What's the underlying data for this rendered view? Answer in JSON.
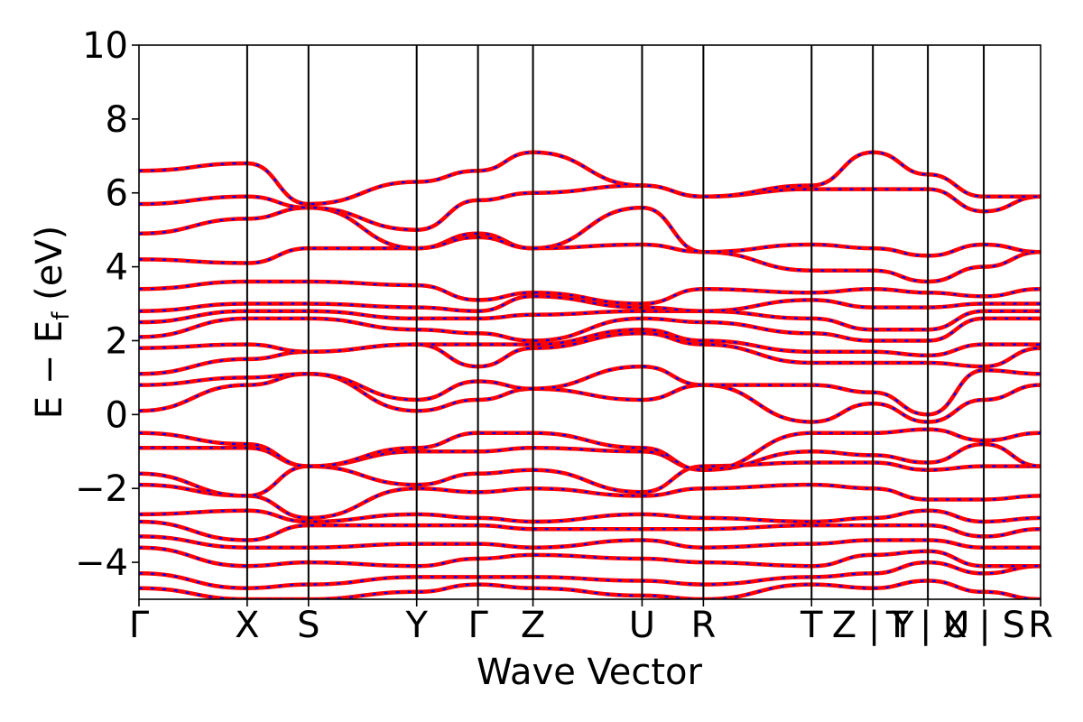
{
  "chart_data": {
    "type": "line",
    "xlabel": "Wave Vector",
    "ylabel": "E − E",
    "ylabel_subscript": "f",
    "ylabel_unit": " (eV)",
    "ylim": [
      -5,
      10
    ],
    "yticks": [
      -4,
      -2,
      0,
      2,
      4,
      6,
      8,
      10
    ],
    "ytick_labels": [
      "−4",
      "−2",
      "0",
      "2",
      "4",
      "6",
      "8",
      "10"
    ],
    "xlim": [
      0,
      1
    ],
    "kpath_ticks": [
      {
        "x": 0.0,
        "label": "Γ"
      },
      {
        "x": 0.12,
        "label": "X"
      },
      {
        "x": 0.188,
        "label": "S"
      },
      {
        "x": 0.308,
        "label": "Y"
      },
      {
        "x": 0.376,
        "label": "Γ"
      },
      {
        "x": 0.437,
        "label": "Z"
      },
      {
        "x": 0.558,
        "label": "U"
      },
      {
        "x": 0.626,
        "label": "R"
      },
      {
        "x": 0.746,
        "label": "T"
      },
      {
        "x": 0.814,
        "label": "Z | Y"
      },
      {
        "x": 0.875,
        "label": "T | U"
      },
      {
        "x": 0.937,
        "label": "X | S"
      },
      {
        "x": 1.0,
        "label": "R"
      }
    ],
    "segment_boundaries": [
      0.0,
      0.12,
      0.188,
      0.308,
      0.376,
      0.437,
      0.558,
      0.626,
      0.746,
      0.814,
      0.875,
      0.937,
      1.0
    ],
    "colors": {
      "band_solid": "#ff0000",
      "band_dashed": "#0000ff",
      "vline": "#000000"
    },
    "series": [
      {
        "values_at_ticks": [
          -4.7,
          -5.0,
          -5.0,
          -4.8,
          -4.6,
          -4.7,
          -4.9,
          -5.0,
          -4.6,
          -4.7,
          -4.5,
          -4.8,
          -5.0
        ]
      },
      {
        "values_at_ticks": [
          -4.3,
          -4.7,
          -4.6,
          -4.4,
          -4.4,
          -4.4,
          -4.5,
          -4.6,
          -4.4,
          -4.3,
          -4.0,
          -4.3,
          -4.1
        ]
      },
      {
        "values_at_ticks": [
          -3.6,
          -4.1,
          -4.0,
          -4.1,
          -3.9,
          -3.8,
          -3.9,
          -4.0,
          -4.1,
          -3.8,
          -3.7,
          -4.1,
          -4.1
        ]
      },
      {
        "values_at_ticks": [
          -3.3,
          -3.6,
          -3.6,
          -3.5,
          -3.5,
          -3.6,
          -3.4,
          -3.6,
          -3.5,
          -3.4,
          -3.4,
          -3.6,
          -3.6
        ]
      },
      {
        "values_at_ticks": [
          -2.9,
          -3.4,
          -3.0,
          -3.0,
          -3.0,
          -3.1,
          -3.1,
          -3.1,
          -3.0,
          -3.0,
          -3.0,
          -3.3,
          -3.1
        ]
      },
      {
        "values_at_ticks": [
          -2.7,
          -2.6,
          -2.9,
          -2.7,
          -2.8,
          -2.9,
          -2.7,
          -2.8,
          -2.9,
          -2.8,
          -2.6,
          -2.9,
          -2.8
        ]
      },
      {
        "values_at_ticks": [
          -1.9,
          -2.2,
          -2.8,
          -2.0,
          -2.1,
          -2.0,
          -2.2,
          -2.0,
          -1.9,
          -2.0,
          -2.3,
          -2.3,
          -2.2
        ]
      },
      {
        "values_at_ticks": [
          -1.6,
          -2.2,
          -1.4,
          -1.9,
          -1.6,
          -1.5,
          -2.1,
          -1.4,
          -1.3,
          -1.3,
          -1.5,
          -1.4,
          -1.4
        ]
      },
      {
        "values_at_ticks": [
          -0.9,
          -0.9,
          -1.4,
          -1.0,
          -1.0,
          -0.9,
          -1.0,
          -1.5,
          -1.0,
          -1.1,
          -1.3,
          -0.8,
          -1.4
        ]
      },
      {
        "values_at_ticks": [
          -0.5,
          -0.8,
          -1.4,
          -0.9,
          -0.5,
          -0.5,
          -0.9,
          -1.5,
          -0.5,
          -0.5,
          -0.4,
          -0.7,
          -0.5
        ]
      },
      {
        "values_at_ticks": [
          0.1,
          0.8,
          1.1,
          0.1,
          0.4,
          0.7,
          0.4,
          0.8,
          -0.2,
          0.3,
          -0.2,
          0.4,
          0.8
        ]
      },
      {
        "values_at_ticks": [
          0.8,
          1.0,
          1.1,
          0.4,
          0.9,
          0.7,
          1.3,
          0.8,
          0.8,
          0.6,
          0.0,
          1.2,
          1.1
        ]
      },
      {
        "values_at_ticks": [
          1.1,
          1.5,
          1.7,
          1.9,
          1.3,
          1.8,
          2.2,
          1.9,
          1.4,
          1.4,
          1.4,
          1.3,
          1.8
        ]
      },
      {
        "values_at_ticks": [
          1.8,
          1.9,
          1.7,
          1.9,
          1.9,
          1.9,
          2.3,
          2.0,
          1.7,
          1.7,
          1.6,
          1.9,
          1.9
        ]
      },
      {
        "values_at_ticks": [
          2.1,
          2.6,
          2.6,
          2.3,
          2.2,
          2.0,
          2.6,
          2.5,
          2.2,
          2.0,
          2.0,
          2.6,
          2.6
        ]
      },
      {
        "values_at_ticks": [
          2.5,
          2.8,
          2.8,
          2.6,
          2.6,
          2.7,
          2.8,
          2.8,
          2.6,
          2.3,
          2.3,
          2.8,
          2.8
        ]
      },
      {
        "values_at_ticks": [
          2.8,
          3.0,
          3.0,
          2.9,
          2.8,
          3.2,
          2.9,
          2.8,
          3.1,
          2.9,
          2.9,
          3.0,
          3.0
        ]
      },
      {
        "values_at_ticks": [
          3.4,
          3.6,
          3.6,
          3.5,
          3.1,
          3.3,
          3.0,
          3.4,
          3.3,
          3.4,
          3.3,
          3.2,
          3.4
        ]
      },
      {
        "values_at_ticks": [
          4.2,
          4.1,
          4.5,
          4.5,
          4.9,
          4.5,
          4.6,
          4.4,
          3.9,
          3.9,
          3.6,
          4.0,
          4.4
        ]
      },
      {
        "values_at_ticks": [
          4.9,
          5.3,
          5.6,
          4.5,
          4.8,
          4.5,
          5.6,
          4.4,
          4.6,
          4.5,
          4.3,
          4.6,
          4.4
        ]
      },
      {
        "values_at_ticks": [
          5.7,
          5.9,
          5.6,
          5.0,
          5.8,
          6.0,
          6.2,
          5.9,
          6.1,
          6.1,
          6.1,
          5.5,
          5.9
        ]
      },
      {
        "values_at_ticks": [
          6.6,
          6.8,
          5.7,
          6.3,
          6.6,
          7.1,
          6.2,
          5.9,
          6.2,
          7.1,
          6.5,
          5.9,
          5.9
        ]
      }
    ]
  }
}
